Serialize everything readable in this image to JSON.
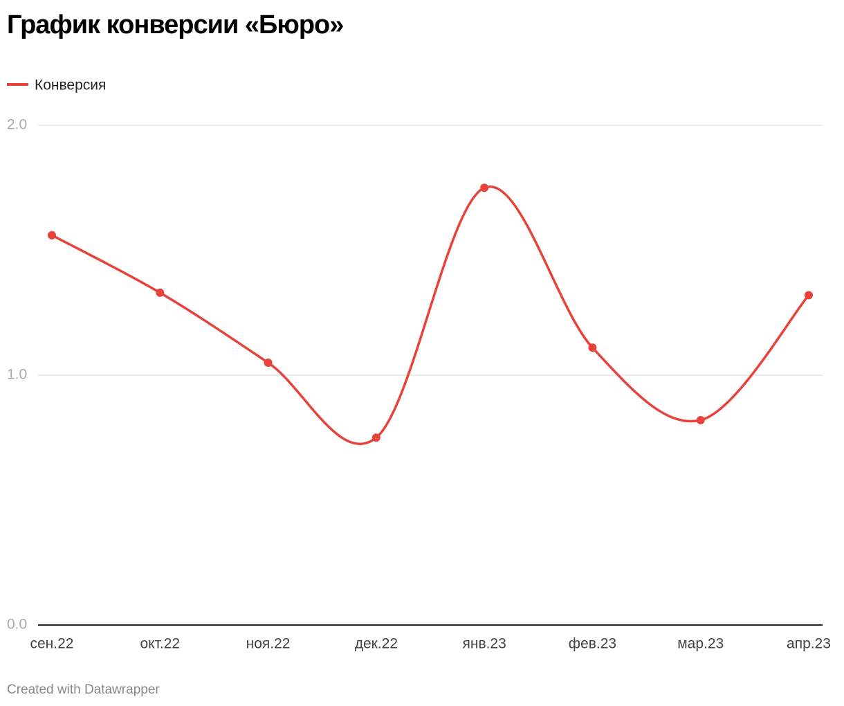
{
  "chart_data": {
    "type": "line",
    "title": "График конверсии «Бюро»",
    "categories": [
      "сен.22",
      "окт.22",
      "ноя.22",
      "дек.22",
      "янв.23",
      "фев.23",
      "мар.23",
      "апр.23"
    ],
    "series": [
      {
        "name": "Конверсия",
        "color": "#e8423a",
        "values": [
          1.56,
          1.33,
          1.05,
          0.75,
          1.75,
          1.11,
          0.82,
          1.32
        ]
      }
    ],
    "ylim": [
      0,
      2
    ],
    "yticks": [
      {
        "value": 0,
        "label": "0.0"
      },
      {
        "value": 1,
        "label": "1.0"
      },
      {
        "value": 2,
        "label": "2.0"
      }
    ],
    "grid": true,
    "legend": "top-left",
    "footer": "Created with Datawrapper"
  }
}
